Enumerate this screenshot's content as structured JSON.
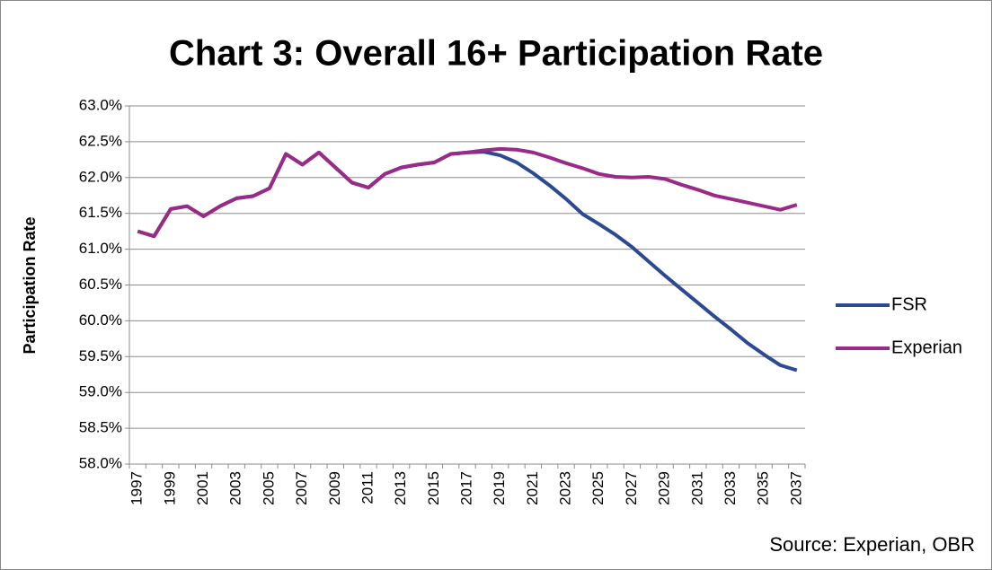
{
  "chart_data": {
    "type": "line",
    "title": "Chart 3: Overall 16+ Participation Rate",
    "y_label": "Participation Rate",
    "source": "Source: Experian, OBR",
    "categories": [
      "1997",
      null,
      "1999",
      null,
      "2001",
      null,
      "2003",
      null,
      "2005",
      null,
      "2007",
      null,
      "2009",
      null,
      "2011",
      null,
      "2013",
      null,
      "2015",
      null,
      "2017",
      null,
      "2019",
      null,
      "2021",
      null,
      "2023",
      null,
      "2025",
      null,
      "2027",
      null,
      "2029",
      null,
      "2031",
      null,
      "2033",
      null,
      "2035",
      null,
      "2037"
    ],
    "series": [
      {
        "name": "FSR",
        "color": "#2b4a93",
        "values": [
          61.25,
          61.18,
          61.56,
          61.6,
          61.46,
          61.6,
          61.71,
          61.74,
          61.85,
          62.33,
          62.18,
          62.35,
          62.14,
          61.93,
          61.86,
          62.05,
          62.14,
          62.18,
          62.21,
          62.33,
          62.35,
          62.36,
          62.31,
          62.21,
          62.06,
          61.89,
          61.7,
          61.49,
          61.35,
          61.2,
          61.03,
          60.83,
          60.63,
          60.44,
          60.25,
          60.06,
          59.88,
          59.69,
          59.53,
          59.38,
          59.31
        ]
      },
      {
        "name": "Experian",
        "color": "#9a2a88",
        "values": [
          61.25,
          61.18,
          61.56,
          61.6,
          61.46,
          61.6,
          61.71,
          61.74,
          61.85,
          62.33,
          62.18,
          62.35,
          62.14,
          61.93,
          61.86,
          62.05,
          62.14,
          62.18,
          62.21,
          62.33,
          62.35,
          62.38,
          62.4,
          62.39,
          62.35,
          62.28,
          62.2,
          62.13,
          62.05,
          62.01,
          62.0,
          62.01,
          61.98,
          61.9,
          61.83,
          61.75,
          61.7,
          61.65,
          61.6,
          61.55,
          61.62
        ]
      }
    ],
    "ylim": [
      58,
      63
    ],
    "yticks": [
      {
        "value": 58,
        "label": "58.0%"
      },
      {
        "value": 58.5,
        "label": "58.5%"
      },
      {
        "value": 59,
        "label": "59.0%"
      },
      {
        "value": 59.5,
        "label": "59.5%"
      },
      {
        "value": 60,
        "label": "60.0%"
      },
      {
        "value": 60.5,
        "label": "60.5%"
      },
      {
        "value": 61,
        "label": "61.0%"
      },
      {
        "value": 61.5,
        "label": "61.5%"
      },
      {
        "value": 62,
        "label": "62.0%"
      },
      {
        "value": 62.5,
        "label": "62.5%"
      },
      {
        "value": 63,
        "label": "63.0%"
      }
    ],
    "grid": true,
    "legend": "right"
  }
}
